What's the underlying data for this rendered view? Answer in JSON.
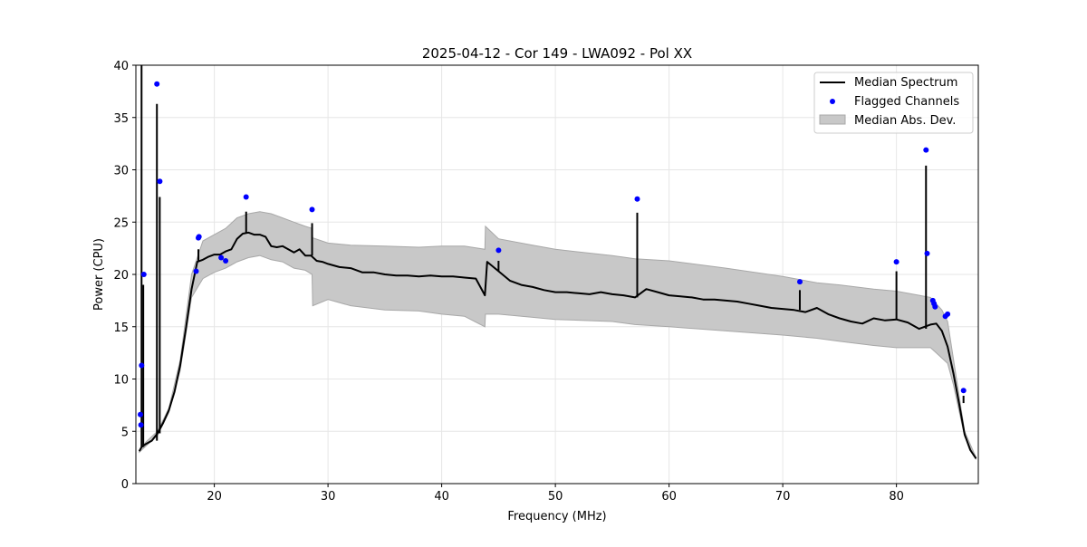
{
  "chart_data": {
    "type": "line",
    "title": "2025-04-12 - Cor 149 - LWA092 - Pol XX",
    "xlabel": "Frequency (MHz)",
    "ylabel": "Power (CPU)",
    "xlim": [
      13.1,
      87.2
    ],
    "ylim": [
      0,
      40
    ],
    "xticks": [
      20,
      30,
      40,
      50,
      60,
      70,
      80
    ],
    "yticks": [
      0,
      5,
      10,
      15,
      20,
      25,
      30,
      35,
      40
    ],
    "grid": true,
    "legend_position": "top-right",
    "colors": {
      "median": "#000000",
      "flagged": "#0000ff",
      "mad_fill": "#c8c8c8",
      "mad_edge": "#a8a8a8"
    },
    "series": [
      {
        "name": "Median Spectrum",
        "kind": "line",
        "x": [
          13.4,
          13.6,
          14.0,
          14.5,
          15.0,
          15.5,
          16.0,
          16.5,
          17.0,
          17.5,
          18.0,
          18.5,
          19.0,
          19.5,
          20.0,
          20.5,
          21.0,
          21.5,
          22.0,
          22.5,
          23.0,
          23.5,
          24.0,
          24.5,
          25.0,
          25.5,
          26.0,
          26.5,
          27.0,
          27.5,
          28.0,
          28.5,
          29.0,
          29.5,
          30.0,
          31.0,
          32.0,
          33.0,
          34.0,
          35.0,
          36.0,
          37.0,
          38.0,
          39.0,
          40.0,
          41.0,
          42.0,
          43.0,
          43.8,
          44.0,
          45.0,
          46.0,
          47.0,
          48.0,
          49.0,
          50.0,
          51.0,
          52.0,
          53.0,
          54.0,
          55.0,
          56.0,
          57.0,
          58.0,
          59.0,
          60.0,
          61.0,
          62.0,
          63.0,
          64.0,
          65.0,
          66.0,
          67.0,
          68.0,
          69.0,
          70.0,
          71.0,
          72.0,
          73.0,
          74.0,
          75.0,
          76.0,
          77.0,
          78.0,
          79.0,
          80.0,
          81.0,
          82.0,
          83.0,
          83.5,
          84.0,
          84.5,
          85.0,
          85.5,
          86.0,
          86.5,
          87.0
        ],
        "y": [
          3.1,
          3.5,
          3.8,
          4.1,
          4.8,
          5.8,
          7.0,
          8.8,
          11.3,
          14.8,
          18.6,
          21.2,
          21.4,
          21.7,
          21.9,
          21.9,
          22.2,
          22.4,
          23.4,
          23.9,
          24.0,
          23.8,
          23.8,
          23.6,
          22.7,
          22.6,
          22.7,
          22.4,
          22.1,
          22.4,
          21.8,
          21.8,
          21.3,
          21.2,
          21.0,
          20.7,
          20.6,
          20.2,
          20.2,
          20.0,
          19.9,
          19.9,
          19.8,
          19.9,
          19.8,
          19.8,
          19.7,
          19.6,
          18.0,
          21.2,
          20.3,
          19.4,
          19.0,
          18.8,
          18.5,
          18.3,
          18.3,
          18.2,
          18.1,
          18.3,
          18.1,
          18.0,
          17.8,
          18.6,
          18.3,
          18.0,
          17.9,
          17.8,
          17.6,
          17.6,
          17.5,
          17.4,
          17.2,
          17.0,
          16.8,
          16.7,
          16.6,
          16.4,
          16.8,
          16.2,
          15.8,
          15.5,
          15.3,
          15.8,
          15.6,
          15.7,
          15.4,
          14.8,
          15.2,
          15.3,
          14.6,
          13.1,
          10.6,
          7.7,
          4.7,
          3.2,
          2.4
        ]
      },
      {
        "name": "Flagged Channels",
        "kind": "scatter",
        "x": [
          13.5,
          13.55,
          13.6,
          13.8,
          14.95,
          15.2,
          18.4,
          18.6,
          18.65,
          20.6,
          21.0,
          22.8,
          28.6,
          45.0,
          57.2,
          71.5,
          80.0,
          82.6,
          82.7,
          83.2,
          83.3,
          83.4,
          84.3,
          84.5,
          85.9
        ],
        "y": [
          6.6,
          5.6,
          11.3,
          20.0,
          38.2,
          28.9,
          20.3,
          23.5,
          23.6,
          21.6,
          21.3,
          27.4,
          26.2,
          22.3,
          27.2,
          19.3,
          21.2,
          31.9,
          22.0,
          17.5,
          17.2,
          16.9,
          16.0,
          16.2,
          8.9
        ]
      },
      {
        "name": "Median Abs. Dev.",
        "kind": "band",
        "x": [
          13.4,
          14.0,
          15.0,
          16.0,
          17.0,
          18.0,
          19.0,
          20.0,
          21.0,
          22.0,
          23.0,
          24.0,
          25.0,
          26.0,
          27.0,
          28.0,
          28.6,
          28.65,
          30.0,
          32.0,
          35.0,
          38.0,
          40.0,
          42.0,
          43.8,
          43.85,
          45.0,
          48.0,
          50.0,
          55.0,
          57.0,
          60.0,
          65.0,
          70.0,
          73.0,
          75.0,
          78.0,
          80.0,
          83.0,
          84.0,
          84.5,
          85.0,
          86.0,
          87.0
        ],
        "lower": [
          3.0,
          3.6,
          4.6,
          6.8,
          10.8,
          17.8,
          19.6,
          20.2,
          20.6,
          21.2,
          21.6,
          21.8,
          21.4,
          21.2,
          20.6,
          20.4,
          20.0,
          17.0,
          17.6,
          17.0,
          16.6,
          16.5,
          16.2,
          16.0,
          15.0,
          16.2,
          16.2,
          15.9,
          15.7,
          15.5,
          15.2,
          15.0,
          14.6,
          14.2,
          13.9,
          13.6,
          13.2,
          13.0,
          13.0,
          12.0,
          11.5,
          9.5,
          4.5,
          2.3
        ],
        "upper": [
          3.2,
          4.0,
          5.0,
          7.2,
          11.8,
          20.0,
          23.2,
          23.8,
          24.4,
          25.4,
          25.8,
          26.0,
          25.8,
          25.4,
          25.0,
          24.6,
          24.4,
          23.5,
          23.0,
          22.8,
          22.7,
          22.6,
          22.7,
          22.7,
          22.4,
          24.6,
          23.4,
          22.8,
          22.4,
          21.8,
          21.5,
          21.3,
          20.6,
          19.8,
          19.2,
          19.0,
          18.6,
          18.4,
          17.8,
          16.6,
          15.5,
          12.0,
          5.0,
          2.5
        ]
      }
    ],
    "spikes": [
      {
        "x": 13.6,
        "y": 40.0
      },
      {
        "x": 13.75,
        "y": 19.0
      },
      {
        "x": 14.95,
        "y": 36.3
      },
      {
        "x": 15.2,
        "y": 27.4
      },
      {
        "x": 18.6,
        "y": 22.4
      },
      {
        "x": 22.8,
        "y": 26.0
      },
      {
        "x": 28.6,
        "y": 24.9
      },
      {
        "x": 45.0,
        "y": 21.3
      },
      {
        "x": 57.2,
        "y": 25.9
      },
      {
        "x": 71.5,
        "y": 18.5
      },
      {
        "x": 80.0,
        "y": 20.3
      },
      {
        "x": 82.6,
        "y": 30.4
      },
      {
        "x": 85.9,
        "y": 8.4
      }
    ],
    "legend": [
      "Median Spectrum",
      "Flagged Channels",
      "Median Abs. Dev."
    ]
  }
}
